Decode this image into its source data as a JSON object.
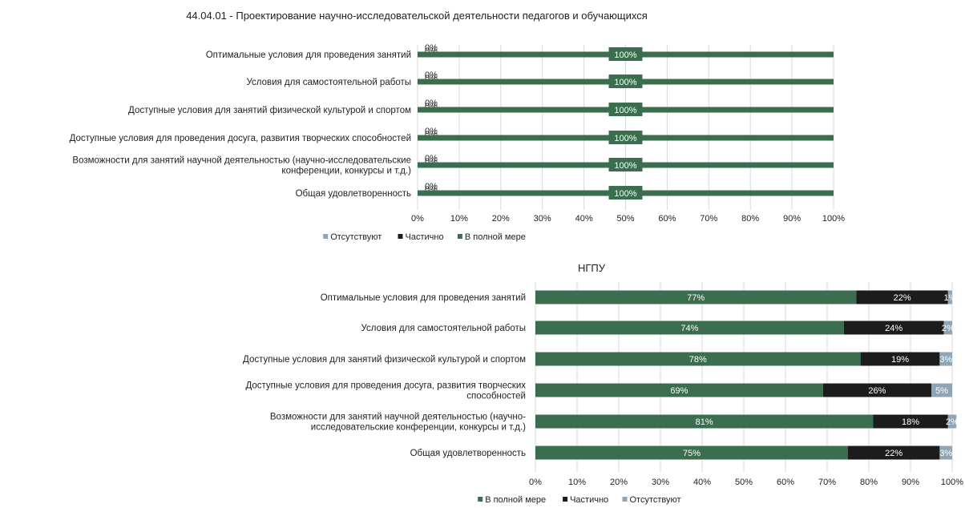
{
  "colors": {
    "full": "#3a6e4f",
    "partial": "#1c1c1c",
    "absent": "#8fa5b5",
    "grid": "#d9d9d9",
    "text": "#222222"
  },
  "chart_data": [
    {
      "type": "bar",
      "orientation": "horizontal",
      "stacked": true,
      "title": "44.04.01 - Проектирование научно-исследовательской деятельности педагогов и обучающихся",
      "categories": [
        [
          "Оптимальные условия для проведения занятий"
        ],
        [
          "Условия для самостоятельной работы"
        ],
        [
          "Доступные условия для занятий физической культурой и спортом"
        ],
        [
          "Доступные условия для проведения досуга, развития творческих способностей"
        ],
        [
          "Возможности для занятий научной деятельностью (научно-исследовательские",
          "конференции, конкурсы и т.д.)"
        ],
        [
          "Общая удовлетворенность"
        ]
      ],
      "stack_order": [
        "Отсутствуют",
        "Частично",
        "В полной мере"
      ],
      "series": [
        {
          "name": "Отсутствуют",
          "color": "#8fa5b5",
          "values": [
            0,
            0,
            0,
            0,
            0,
            0
          ],
          "labels": [
            "0%",
            "0%",
            "0%",
            "0%",
            "0%",
            "0%"
          ]
        },
        {
          "name": "Частично",
          "color": "#1c1c1c",
          "values": [
            0,
            0,
            0,
            0,
            0,
            0
          ],
          "labels": [
            "0%",
            "0%",
            "0%",
            "0%",
            "0%",
            "0%"
          ]
        },
        {
          "name": "В полной мере",
          "color": "#3a6e4f",
          "values": [
            100,
            100,
            100,
            100,
            100,
            100
          ],
          "labels": [
            "100%",
            "100%",
            "100%",
            "100%",
            "100%",
            "100%"
          ]
        }
      ],
      "xlim": [
        0,
        100
      ],
      "xticks": [
        "0%",
        "10%",
        "20%",
        "30%",
        "40%",
        "50%",
        "60%",
        "70%",
        "80%",
        "90%",
        "100%"
      ],
      "legend": [
        "Отсутствуют",
        "Частично",
        "В полной мере"
      ],
      "legend_position": "bottom",
      "grid": true
    },
    {
      "type": "bar",
      "orientation": "horizontal",
      "stacked": true,
      "title": "НГПУ",
      "categories": [
        [
          "Оптимальные условия для проведения занятий"
        ],
        [
          "Условия для самостоятельной работы"
        ],
        [
          "Доступные условия для занятий физической культурой и спортом"
        ],
        [
          "Доступные условия для проведения досуга, развития творческих",
          "способностей"
        ],
        [
          "Возможности для занятий научной деятельностью (научно-",
          "исследовательские конференции, конкурсы и т.д.)"
        ],
        [
          "Общая удовлетворенность"
        ]
      ],
      "stack_order": [
        "В полной мере",
        "Частично",
        "Отсутствуют"
      ],
      "series": [
        {
          "name": "В полной мере",
          "color": "#3a6e4f",
          "values": [
            77,
            74,
            78,
            69,
            81,
            75
          ],
          "labels": [
            "77%",
            "74%",
            "78%",
            "69%",
            "81%",
            "75%"
          ]
        },
        {
          "name": "Частично",
          "color": "#1c1c1c",
          "values": [
            22,
            24,
            19,
            26,
            18,
            22
          ],
          "labels": [
            "22%",
            "24%",
            "19%",
            "26%",
            "18%",
            "22%"
          ]
        },
        {
          "name": "Отсутствуют",
          "color": "#8fa5b5",
          "values": [
            1,
            2,
            3,
            5,
            2,
            3
          ],
          "labels": [
            "1%",
            "2%",
            "3%",
            "5%",
            "2%",
            "3%"
          ]
        }
      ],
      "xlim": [
        0,
        100
      ],
      "xticks": [
        "0%",
        "10%",
        "20%",
        "30%",
        "40%",
        "50%",
        "60%",
        "70%",
        "80%",
        "90%",
        "100%"
      ],
      "legend": [
        "В полной мере",
        "Частично",
        "Отсутствуют"
      ],
      "legend_position": "bottom",
      "grid": true
    }
  ]
}
